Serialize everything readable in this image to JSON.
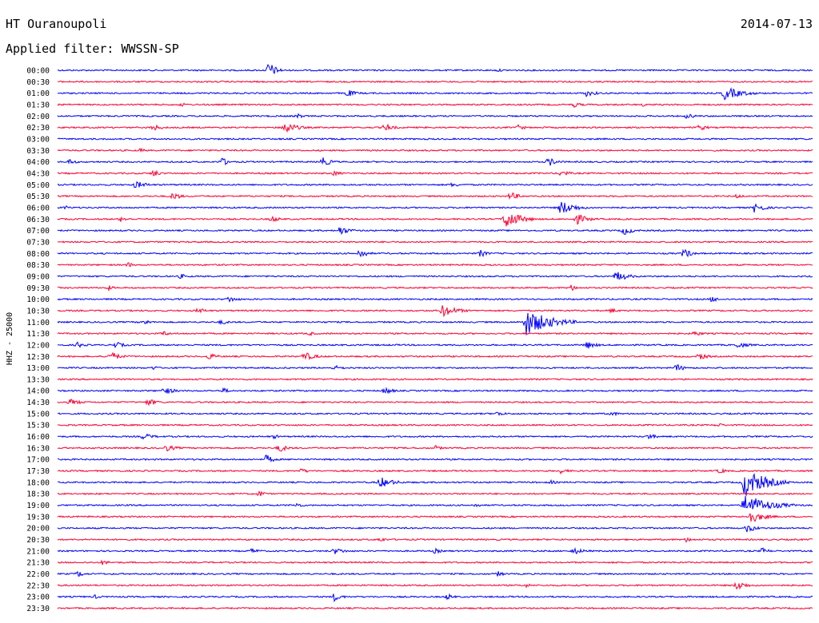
{
  "header": {
    "station": "HT Ouranoupoli",
    "date": "2014-07-13",
    "filter": "Applied filter: WWSSN-SP"
  },
  "colors": {
    "trace_odd": "#0000ff",
    "trace_even": "#ff0033",
    "text": "#000000"
  },
  "chart_data": {
    "type": "line",
    "subtype": "helicorder",
    "ylabel": "HHZ - 25000",
    "row_minutes": 30,
    "row_labels": [
      "00:00",
      "00:30",
      "01:00",
      "01:30",
      "02:00",
      "02:30",
      "03:00",
      "03:30",
      "04:00",
      "04:30",
      "05:00",
      "05:30",
      "06:00",
      "06:30",
      "07:00",
      "07:30",
      "08:00",
      "08:30",
      "09:00",
      "09:30",
      "10:00",
      "10:30",
      "11:00",
      "11:30",
      "12:00",
      "12:30",
      "13:00",
      "13:30",
      "14:00",
      "14:30",
      "15:00",
      "15:30",
      "16:00",
      "16:30",
      "17:00",
      "17:30",
      "18:00",
      "18:30",
      "19:00",
      "19:30",
      "20:00",
      "20:30",
      "21:00",
      "21:30",
      "22:00",
      "22:30",
      "23:00",
      "23:30"
    ],
    "row_colors": [
      "blue",
      "red"
    ],
    "events": [
      {
        "row": 0,
        "minute": 8.4,
        "amp": 1.6,
        "dur": 0.6
      },
      {
        "row": 0,
        "minute": 17.5,
        "amp": 0.3,
        "dur": 0.5
      },
      {
        "row": 2,
        "minute": 11.5,
        "amp": 0.7,
        "dur": 0.8
      },
      {
        "row": 2,
        "minute": 21.0,
        "amp": 0.6,
        "dur": 1.0
      },
      {
        "row": 2,
        "minute": 26.5,
        "amp": 1.2,
        "dur": 1.5
      },
      {
        "row": 3,
        "minute": 4.9,
        "amp": 0.4,
        "dur": 0.5
      },
      {
        "row": 3,
        "minute": 20.5,
        "amp": 0.5,
        "dur": 0.8
      },
      {
        "row": 3,
        "minute": 23.3,
        "amp": 0.4,
        "dur": 0.6
      },
      {
        "row": 4,
        "minute": 9.5,
        "amp": 0.5,
        "dur": 0.6
      },
      {
        "row": 4,
        "minute": 25.0,
        "amp": 0.5,
        "dur": 0.8
      },
      {
        "row": 5,
        "minute": 3.8,
        "amp": 0.6,
        "dur": 0.8
      },
      {
        "row": 5,
        "minute": 9.0,
        "amp": 1.2,
        "dur": 1.0
      },
      {
        "row": 5,
        "minute": 13.0,
        "amp": 0.7,
        "dur": 0.8
      },
      {
        "row": 5,
        "minute": 18.3,
        "amp": 0.5,
        "dur": 0.7
      },
      {
        "row": 5,
        "minute": 25.5,
        "amp": 0.6,
        "dur": 0.7
      },
      {
        "row": 7,
        "minute": 3.3,
        "amp": 0.4,
        "dur": 0.5
      },
      {
        "row": 8,
        "minute": 0.5,
        "amp": 0.6,
        "dur": 0.5
      },
      {
        "row": 8,
        "minute": 6.5,
        "amp": 0.9,
        "dur": 0.6
      },
      {
        "row": 8,
        "minute": 10.5,
        "amp": 0.9,
        "dur": 0.8
      },
      {
        "row": 8,
        "minute": 19.5,
        "amp": 0.8,
        "dur": 0.8
      },
      {
        "row": 9,
        "minute": 3.8,
        "amp": 0.8,
        "dur": 0.5
      },
      {
        "row": 9,
        "minute": 11.0,
        "amp": 0.5,
        "dur": 0.6
      },
      {
        "row": 9,
        "minute": 20.0,
        "amp": 0.6,
        "dur": 0.8
      },
      {
        "row": 10,
        "minute": 3.1,
        "amp": 0.7,
        "dur": 1.0
      },
      {
        "row": 10,
        "minute": 15.7,
        "amp": 0.5,
        "dur": 0.6
      },
      {
        "row": 11,
        "minute": 4.6,
        "amp": 0.8,
        "dur": 0.6
      },
      {
        "row": 11,
        "minute": 18.0,
        "amp": 0.8,
        "dur": 0.7
      },
      {
        "row": 11,
        "minute": 27.0,
        "amp": 0.4,
        "dur": 0.6
      },
      {
        "row": 12,
        "minute": 0.3,
        "amp": 0.4,
        "dur": 0.5
      },
      {
        "row": 12,
        "minute": 20.0,
        "amp": 1.3,
        "dur": 1.2
      },
      {
        "row": 12,
        "minute": 27.7,
        "amp": 1.0,
        "dur": 0.8
      },
      {
        "row": 13,
        "minute": 2.5,
        "amp": 0.5,
        "dur": 0.8
      },
      {
        "row": 13,
        "minute": 8.5,
        "amp": 0.6,
        "dur": 0.7
      },
      {
        "row": 13,
        "minute": 17.8,
        "amp": 1.8,
        "dur": 1.2
      },
      {
        "row": 13,
        "minute": 20.6,
        "amp": 1.0,
        "dur": 1.0
      },
      {
        "row": 14,
        "minute": 11.2,
        "amp": 0.9,
        "dur": 0.8
      },
      {
        "row": 14,
        "minute": 22.5,
        "amp": 0.8,
        "dur": 0.8
      },
      {
        "row": 16,
        "minute": 12.0,
        "amp": 0.9,
        "dur": 0.7
      },
      {
        "row": 16,
        "minute": 16.8,
        "amp": 0.7,
        "dur": 0.6
      },
      {
        "row": 16,
        "minute": 24.9,
        "amp": 1.0,
        "dur": 0.6
      },
      {
        "row": 17,
        "minute": 2.8,
        "amp": 0.5,
        "dur": 0.5
      },
      {
        "row": 18,
        "minute": 4.9,
        "amp": 0.5,
        "dur": 0.5
      },
      {
        "row": 18,
        "minute": 22.2,
        "amp": 1.0,
        "dur": 1.0
      },
      {
        "row": 19,
        "minute": 2.0,
        "amp": 0.5,
        "dur": 0.5
      },
      {
        "row": 19,
        "minute": 20.4,
        "amp": 0.6,
        "dur": 0.6
      },
      {
        "row": 20,
        "minute": 6.8,
        "amp": 0.6,
        "dur": 0.8
      },
      {
        "row": 20,
        "minute": 26.0,
        "amp": 0.6,
        "dur": 0.6
      },
      {
        "row": 21,
        "minute": 5.6,
        "amp": 0.6,
        "dur": 0.6
      },
      {
        "row": 21,
        "minute": 15.3,
        "amp": 1.1,
        "dur": 1.2
      },
      {
        "row": 21,
        "minute": 22.0,
        "amp": 0.5,
        "dur": 0.6
      },
      {
        "row": 22,
        "minute": 3.4,
        "amp": 0.6,
        "dur": 0.6
      },
      {
        "row": 22,
        "minute": 6.5,
        "amp": 0.5,
        "dur": 0.6
      },
      {
        "row": 22,
        "minute": 18.6,
        "amp": 2.4,
        "dur": 2.0
      },
      {
        "row": 23,
        "minute": 4.2,
        "amp": 0.5,
        "dur": 0.6
      },
      {
        "row": 23,
        "minute": 10.0,
        "amp": 0.4,
        "dur": 0.6
      },
      {
        "row": 23,
        "minute": 25.3,
        "amp": 0.5,
        "dur": 0.8
      },
      {
        "row": 24,
        "minute": 0.8,
        "amp": 0.6,
        "dur": 0.6
      },
      {
        "row": 24,
        "minute": 2.3,
        "amp": 0.6,
        "dur": 0.8
      },
      {
        "row": 24,
        "minute": 21.0,
        "amp": 0.8,
        "dur": 0.8
      },
      {
        "row": 24,
        "minute": 27.0,
        "amp": 0.6,
        "dur": 1.0
      },
      {
        "row": 25,
        "minute": 2.1,
        "amp": 0.9,
        "dur": 0.8
      },
      {
        "row": 25,
        "minute": 6.0,
        "amp": 0.6,
        "dur": 0.8
      },
      {
        "row": 25,
        "minute": 9.8,
        "amp": 0.8,
        "dur": 1.0
      },
      {
        "row": 25,
        "minute": 25.5,
        "amp": 0.7,
        "dur": 0.7
      },
      {
        "row": 26,
        "minute": 3.8,
        "amp": 0.4,
        "dur": 0.6
      },
      {
        "row": 26,
        "minute": 11.0,
        "amp": 0.5,
        "dur": 0.8
      },
      {
        "row": 26,
        "minute": 24.6,
        "amp": 0.7,
        "dur": 0.7
      },
      {
        "row": 28,
        "minute": 4.2,
        "amp": 0.7,
        "dur": 1.0
      },
      {
        "row": 28,
        "minute": 6.6,
        "amp": 0.5,
        "dur": 0.6
      },
      {
        "row": 28,
        "minute": 13.0,
        "amp": 0.7,
        "dur": 0.7
      },
      {
        "row": 29,
        "minute": 0.5,
        "amp": 0.6,
        "dur": 1.0
      },
      {
        "row": 29,
        "minute": 3.6,
        "amp": 0.7,
        "dur": 0.8
      },
      {
        "row": 30,
        "minute": 17.5,
        "amp": 0.5,
        "dur": 0.6
      },
      {
        "row": 30,
        "minute": 22.0,
        "amp": 0.5,
        "dur": 0.6
      },
      {
        "row": 31,
        "minute": 26.2,
        "amp": 0.4,
        "dur": 0.8
      },
      {
        "row": 32,
        "minute": 3.4,
        "amp": 0.6,
        "dur": 1.0
      },
      {
        "row": 32,
        "minute": 8.6,
        "amp": 0.4,
        "dur": 0.6
      },
      {
        "row": 32,
        "minute": 23.5,
        "amp": 0.6,
        "dur": 0.6
      },
      {
        "row": 33,
        "minute": 4.3,
        "amp": 0.6,
        "dur": 1.0
      },
      {
        "row": 33,
        "minute": 8.8,
        "amp": 0.8,
        "dur": 0.7
      },
      {
        "row": 33,
        "minute": 15.0,
        "amp": 0.5,
        "dur": 0.6
      },
      {
        "row": 34,
        "minute": 8.3,
        "amp": 0.9,
        "dur": 0.6
      },
      {
        "row": 35,
        "minute": 9.7,
        "amp": 0.5,
        "dur": 0.6
      },
      {
        "row": 35,
        "minute": 20.0,
        "amp": 0.5,
        "dur": 0.7
      },
      {
        "row": 35,
        "minute": 26.3,
        "amp": 0.5,
        "dur": 0.7
      },
      {
        "row": 36,
        "minute": 12.8,
        "amp": 1.0,
        "dur": 1.2
      },
      {
        "row": 36,
        "minute": 19.6,
        "amp": 0.4,
        "dur": 0.6
      },
      {
        "row": 36,
        "minute": 27.3,
        "amp": 2.5,
        "dur": 1.8
      },
      {
        "row": 37,
        "minute": 8.0,
        "amp": 0.6,
        "dur": 0.6
      },
      {
        "row": 38,
        "minute": 9.5,
        "amp": 0.5,
        "dur": 0.6
      },
      {
        "row": 38,
        "minute": 16.6,
        "amp": 0.4,
        "dur": 0.6
      },
      {
        "row": 38,
        "minute": 27.3,
        "amp": 2.0,
        "dur": 2.0
      },
      {
        "row": 39,
        "minute": 27.5,
        "amp": 1.2,
        "dur": 1.2
      },
      {
        "row": 40,
        "minute": 27.4,
        "amp": 0.8,
        "dur": 0.8
      },
      {
        "row": 41,
        "minute": 12.8,
        "amp": 0.5,
        "dur": 0.6
      },
      {
        "row": 41,
        "minute": 25.0,
        "amp": 0.5,
        "dur": 0.6
      },
      {
        "row": 42,
        "minute": 7.7,
        "amp": 0.5,
        "dur": 0.8
      },
      {
        "row": 42,
        "minute": 11.0,
        "amp": 0.6,
        "dur": 1.0
      },
      {
        "row": 42,
        "minute": 15.0,
        "amp": 0.5,
        "dur": 0.6
      },
      {
        "row": 42,
        "minute": 20.5,
        "amp": 0.6,
        "dur": 1.0
      },
      {
        "row": 42,
        "minute": 28.0,
        "amp": 0.6,
        "dur": 0.6
      },
      {
        "row": 43,
        "minute": 1.8,
        "amp": 0.5,
        "dur": 0.6
      },
      {
        "row": 44,
        "minute": 0.8,
        "amp": 0.6,
        "dur": 0.6
      },
      {
        "row": 44,
        "minute": 17.5,
        "amp": 0.5,
        "dur": 0.6
      },
      {
        "row": 45,
        "minute": 18.6,
        "amp": 0.4,
        "dur": 0.6
      },
      {
        "row": 45,
        "minute": 27.0,
        "amp": 0.9,
        "dur": 0.8
      },
      {
        "row": 46,
        "minute": 1.5,
        "amp": 0.4,
        "dur": 0.5
      },
      {
        "row": 46,
        "minute": 11.0,
        "amp": 0.8,
        "dur": 0.6
      },
      {
        "row": 46,
        "minute": 15.5,
        "amp": 0.6,
        "dur": 0.5
      }
    ]
  }
}
